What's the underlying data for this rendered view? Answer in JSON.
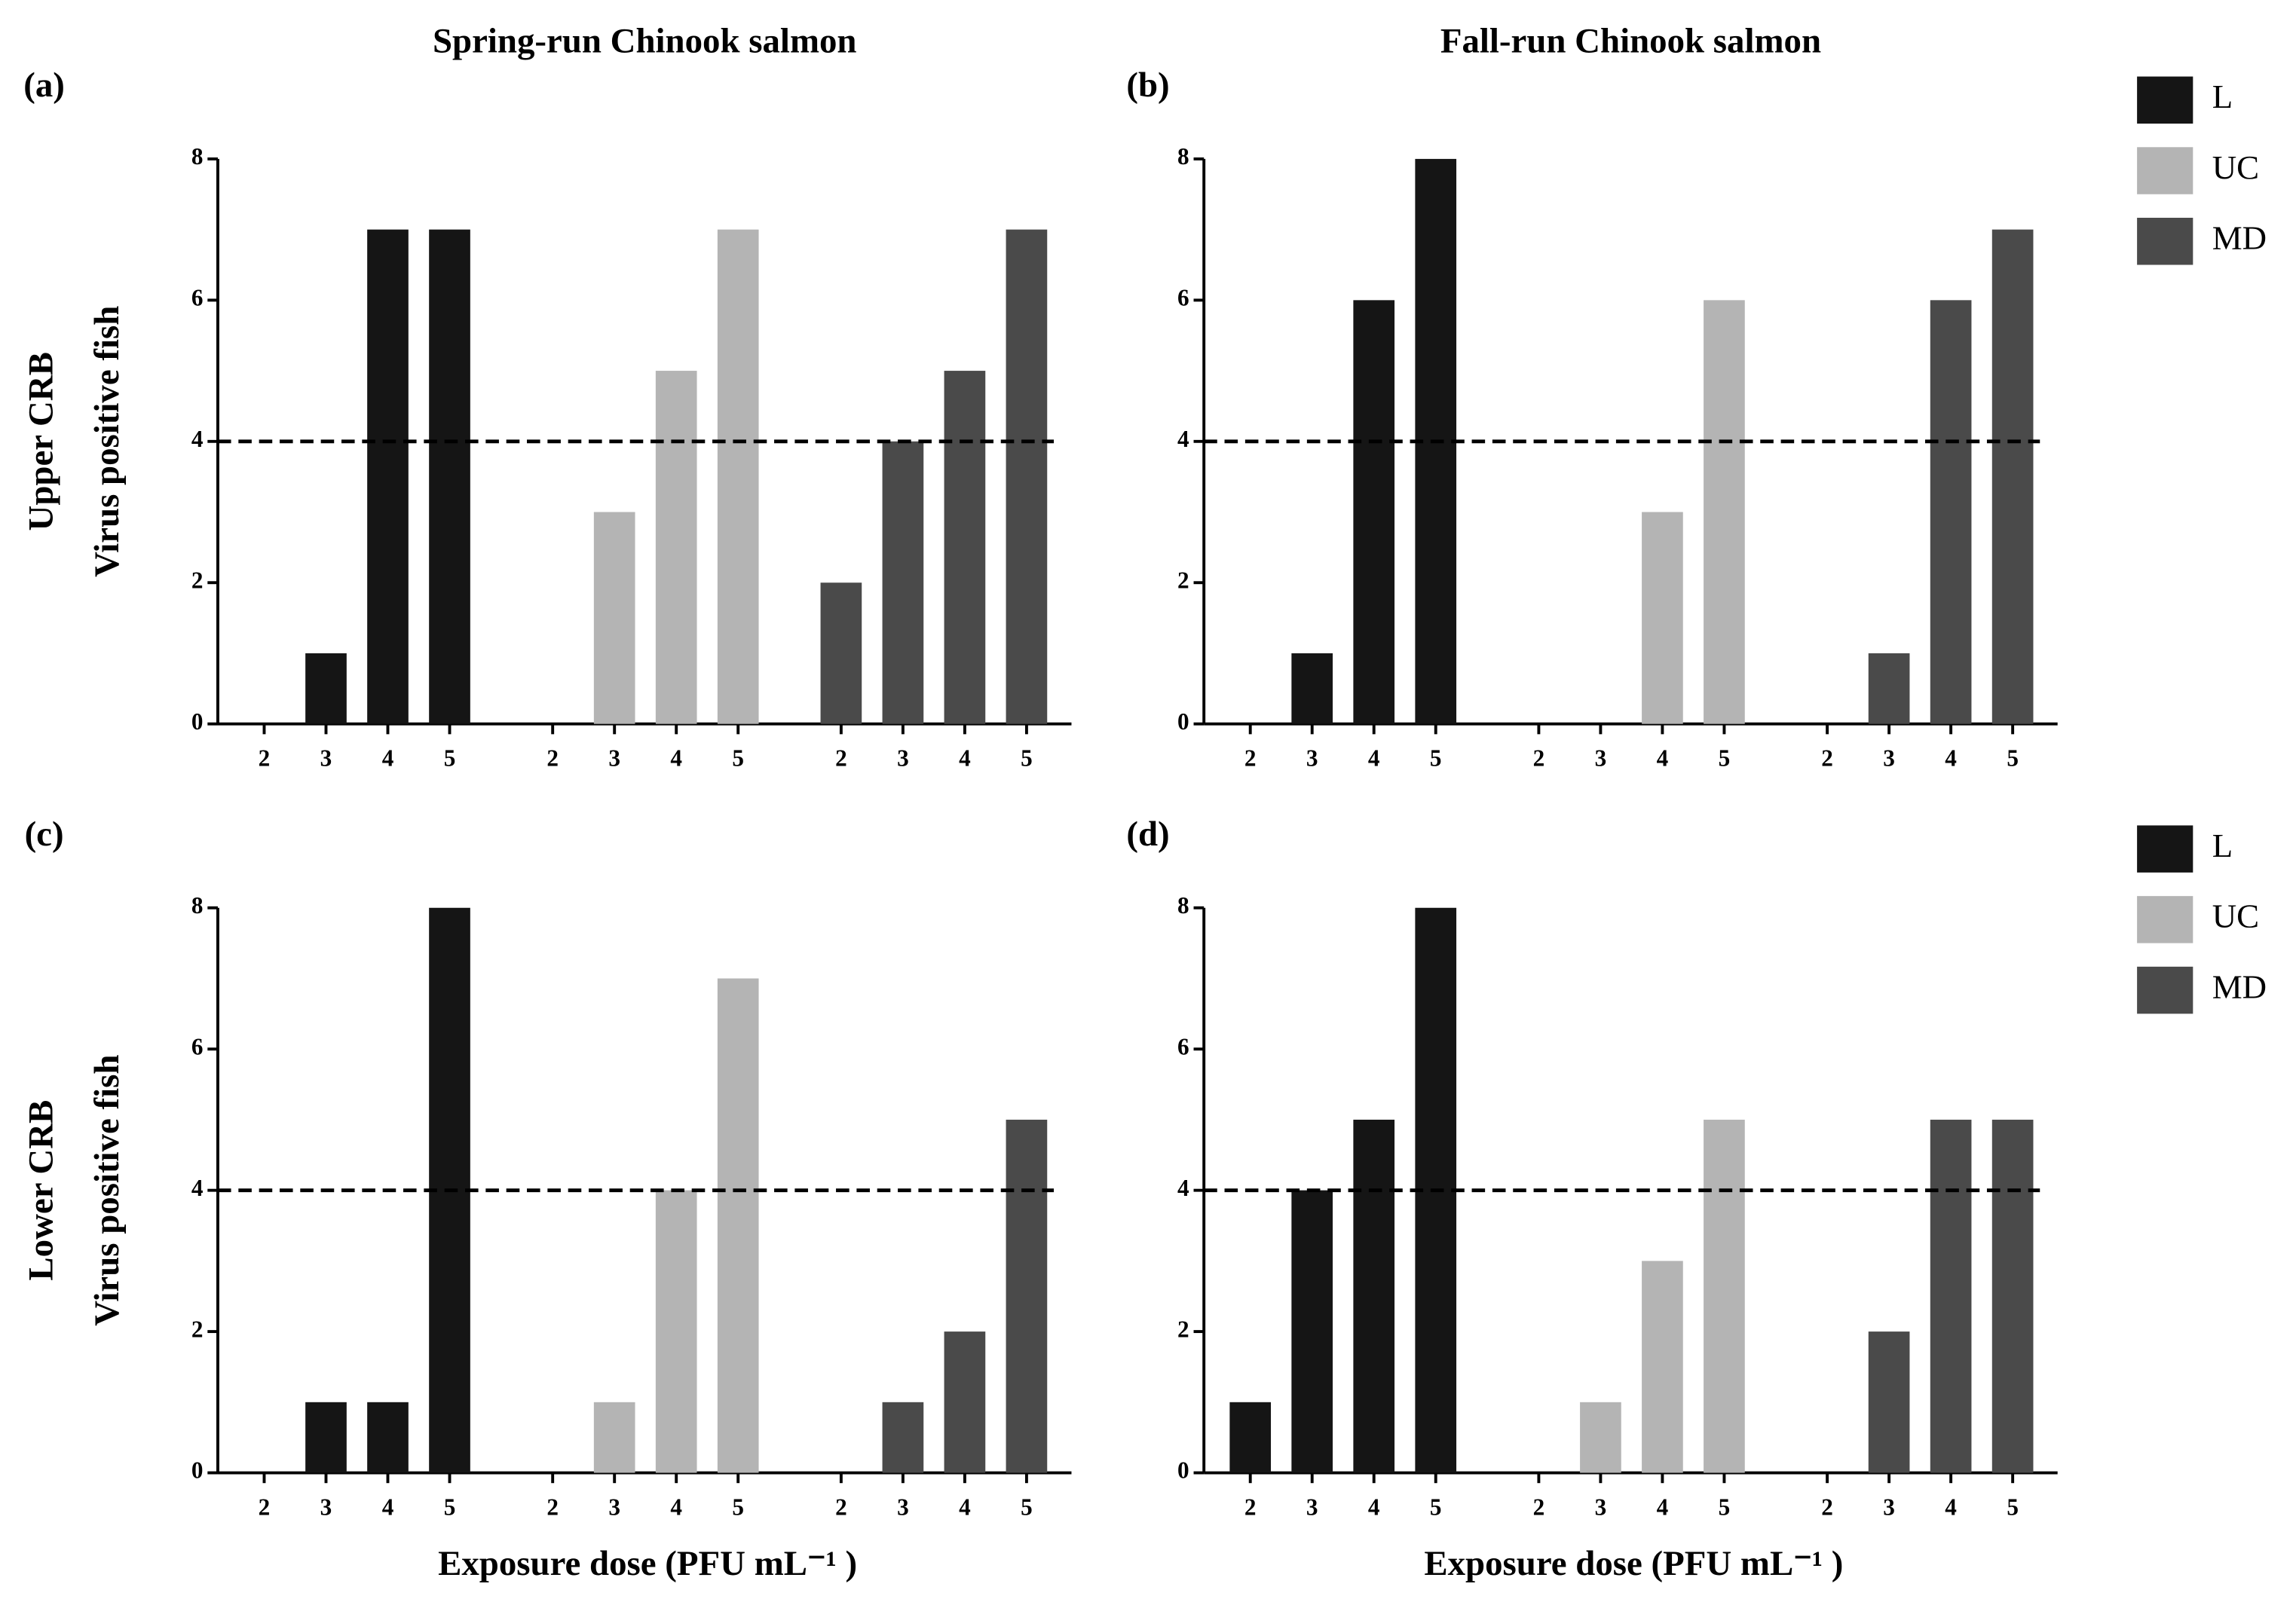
{
  "chart_data": [
    {
      "type": "bar",
      "panel": "(a)",
      "title": "Spring-run Chinook salmon",
      "row_label": "Upper CRB",
      "ylabel": "Virus positive fish",
      "categories": [
        "2",
        "3",
        "4",
        "5"
      ],
      "ylim": [
        0,
        8
      ],
      "yticks": [
        0,
        2,
        4,
        6,
        8
      ],
      "reference_line": 4,
      "series": [
        {
          "name": "L",
          "color": "#151515",
          "values": [
            0,
            1,
            7,
            7
          ]
        },
        {
          "name": "UC",
          "color": "#b4b4b4",
          "values": [
            0,
            3,
            5,
            7
          ]
        },
        {
          "name": "MD",
          "color": "#4a4a4a",
          "values": [
            2,
            4,
            5,
            7
          ]
        }
      ]
    },
    {
      "type": "bar",
      "panel": "(b)",
      "title": "Fall-run Chinook salmon",
      "legend": "right",
      "categories": [
        "2",
        "3",
        "4",
        "5"
      ],
      "ylim": [
        0,
        8
      ],
      "yticks": [
        0,
        2,
        4,
        6,
        8
      ],
      "reference_line": 4,
      "series": [
        {
          "name": "L",
          "color": "#151515",
          "values": [
            0,
            1,
            6,
            8
          ]
        },
        {
          "name": "UC",
          "color": "#b4b4b4",
          "values": [
            0,
            0,
            3,
            6
          ]
        },
        {
          "name": "MD",
          "color": "#4a4a4a",
          "values": [
            0,
            1,
            6,
            7
          ]
        }
      ]
    },
    {
      "type": "bar",
      "panel": "(c)",
      "row_label": "Lower CRB",
      "ylabel": "Virus positive fish",
      "xlabel": "Exposure dose (PFU mL⁻¹ )",
      "categories": [
        "2",
        "3",
        "4",
        "5"
      ],
      "ylim": [
        0,
        8
      ],
      "yticks": [
        0,
        2,
        4,
        6,
        8
      ],
      "reference_line": 4,
      "series": [
        {
          "name": "L",
          "color": "#151515",
          "values": [
            0,
            1,
            1,
            8
          ]
        },
        {
          "name": "UC",
          "color": "#b4b4b4",
          "values": [
            0,
            1,
            4,
            7
          ]
        },
        {
          "name": "MD",
          "color": "#4a4a4a",
          "values": [
            0,
            1,
            2,
            5
          ]
        }
      ]
    },
    {
      "type": "bar",
      "panel": "(d)",
      "xlabel": "Exposure dose (PFU mL⁻¹ )",
      "legend": "right",
      "categories": [
        "2",
        "3",
        "4",
        "5"
      ],
      "ylim": [
        0,
        8
      ],
      "yticks": [
        0,
        2,
        4,
        6,
        8
      ],
      "reference_line": 4,
      "series": [
        {
          "name": "L",
          "color": "#151515",
          "values": [
            1,
            4,
            5,
            8
          ]
        },
        {
          "name": "UC",
          "color": "#b4b4b4",
          "values": [
            0,
            1,
            3,
            5
          ]
        },
        {
          "name": "MD",
          "color": "#4a4a4a",
          "values": [
            0,
            2,
            5,
            5
          ]
        }
      ]
    }
  ]
}
